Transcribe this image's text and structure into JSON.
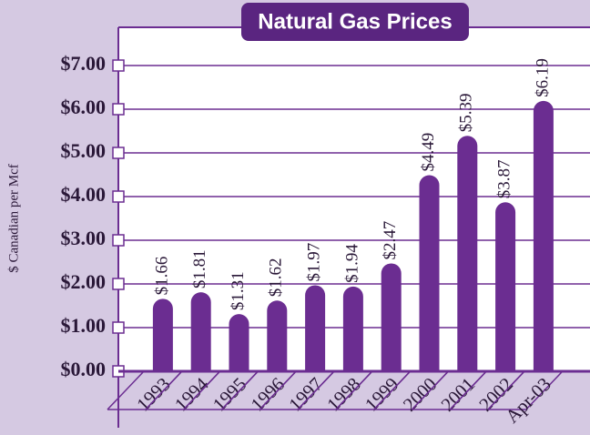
{
  "chart_data": {
    "type": "bar",
    "title": "Natural Gas Prices",
    "y_label": "$ Canadian per Mcf",
    "categories": [
      "1993",
      "1994",
      "1995",
      "1996",
      "1997",
      "1998",
      "1999",
      "2000",
      "2001",
      "2002",
      "Apr-03"
    ],
    "values": [
      1.66,
      1.81,
      1.31,
      1.62,
      1.97,
      1.94,
      2.47,
      4.49,
      5.39,
      3.87,
      6.19
    ],
    "value_labels": [
      "$1.66",
      "$1.81",
      "$1.31",
      "$1.62",
      "$1.97",
      "$1.94",
      "$2.47",
      "$4.49",
      "$5.39",
      "$3.87",
      "$6.19"
    ],
    "color": "#6b2d91",
    "ylim": [
      0,
      7.875
    ],
    "yticks": [
      {
        "value": 0,
        "label": "$0.00"
      },
      {
        "value": 1,
        "label": "$1.00"
      },
      {
        "value": 2,
        "label": "$2.00"
      },
      {
        "value": 3,
        "label": "$3.00"
      },
      {
        "value": 4,
        "label": "$4.00"
      },
      {
        "value": 5,
        "label": "$5.00"
      },
      {
        "value": 6,
        "label": "$6.00"
      },
      {
        "value": 7,
        "label": "$7.00"
      }
    ],
    "grid": true
  }
}
